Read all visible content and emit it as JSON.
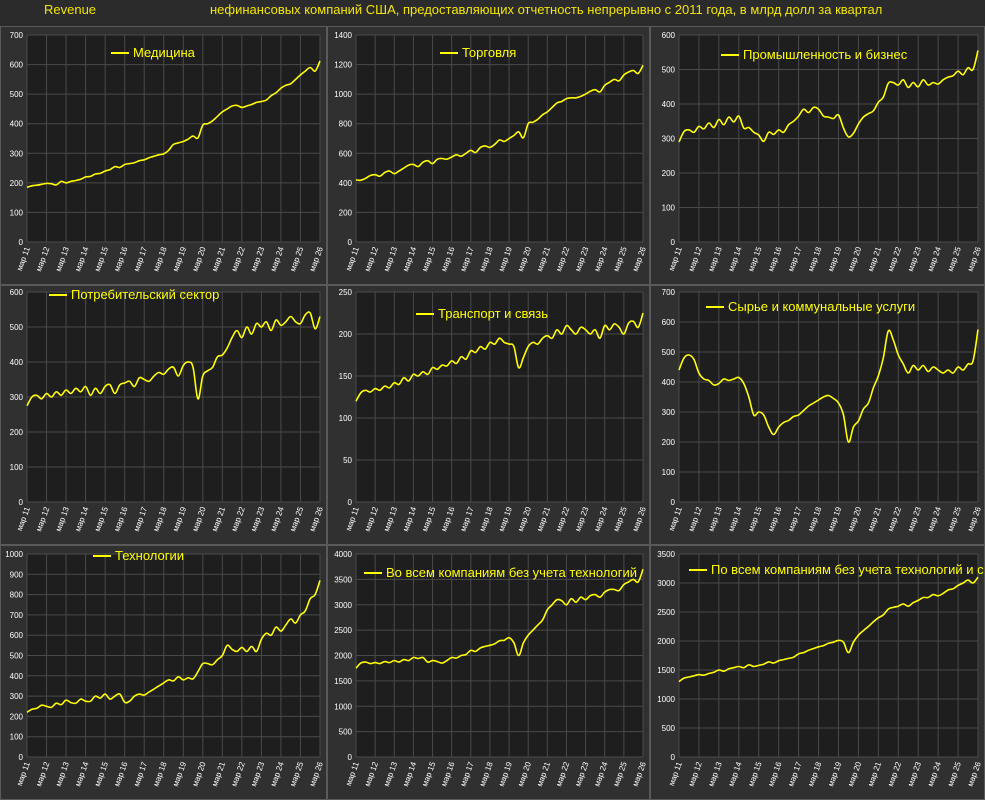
{
  "header": {
    "left_label": "Revenue",
    "subtitle": "нефинансовых компаний США, предоставляющих отчетность непрерывно с 2011 года, в млрд долл за квартал"
  },
  "colors": {
    "line": "#ffff00",
    "background": "#2b2b2b",
    "plot_bg": "#1e1e1e",
    "grid": "#4a4a4a",
    "text": "#ffffff"
  },
  "x_tick_labels": [
    "мар 11",
    "мар 12",
    "мар 13",
    "мар 14",
    "мар 15",
    "мар 16",
    "мар 17",
    "мар 18",
    "мар 19",
    "мар 20",
    "мар 21",
    "мар 22",
    "мар 23",
    "мар 24",
    "мар 25",
    "мар 26"
  ],
  "chart_data": [
    {
      "type": "line",
      "title": "Медицина",
      "legend_position": "top-left",
      "ylim": [
        0,
        700
      ],
      "yticks": [
        0,
        100,
        200,
        300,
        400,
        500,
        600,
        700
      ],
      "grid": true,
      "x_start": "2011-03",
      "x_step": "quarter",
      "values": [
        185,
        190,
        192,
        195,
        198,
        197,
        193,
        205,
        200,
        205,
        208,
        212,
        220,
        222,
        230,
        232,
        240,
        245,
        255,
        252,
        262,
        265,
        268,
        275,
        278,
        285,
        290,
        295,
        298,
        310,
        330,
        335,
        340,
        348,
        358,
        352,
        395,
        400,
        410,
        425,
        440,
        450,
        460,
        462,
        455,
        460,
        465,
        472,
        475,
        480,
        495,
        505,
        520,
        530,
        535,
        550,
        565,
        578,
        590,
        578,
        612
      ]
    },
    {
      "type": "line",
      "title": "Торговля",
      "legend_position": "top-center",
      "ylim": [
        0,
        1400
      ],
      "yticks": [
        0,
        200,
        400,
        600,
        800,
        1000,
        1200,
        1400
      ],
      "grid": true,
      "x_start": "2011-03",
      "x_step": "quarter",
      "values": [
        420,
        418,
        430,
        450,
        455,
        445,
        470,
        480,
        462,
        480,
        500,
        520,
        525,
        510,
        540,
        550,
        530,
        560,
        565,
        560,
        575,
        590,
        580,
        600,
        620,
        605,
        640,
        650,
        640,
        660,
        690,
        680,
        700,
        720,
        745,
        705,
        800,
        810,
        830,
        860,
        880,
        910,
        940,
        950,
        970,
        975,
        975,
        985,
        1000,
        1020,
        1030,
        1015,
        1060,
        1080,
        1100,
        1090,
        1130,
        1150,
        1160,
        1140,
        1195
      ]
    },
    {
      "type": "line",
      "title": "Промышленность и бизнес",
      "legend_position": "top-center",
      "ylim": [
        0,
        600
      ],
      "yticks": [
        0,
        100,
        200,
        300,
        400,
        500,
        600
      ],
      "grid": true,
      "x_start": "2011-03",
      "x_step": "quarter",
      "values": [
        290,
        320,
        325,
        318,
        335,
        328,
        345,
        332,
        355,
        340,
        362,
        348,
        365,
        330,
        332,
        318,
        310,
        292,
        318,
        312,
        325,
        318,
        340,
        350,
        365,
        385,
        375,
        390,
        385,
        365,
        362,
        358,
        368,
        330,
        305,
        315,
        342,
        362,
        372,
        380,
        405,
        420,
        460,
        462,
        455,
        470,
        448,
        462,
        450,
        470,
        455,
        462,
        458,
        470,
        478,
        482,
        495,
        485,
        505,
        500,
        555
      ]
    },
    {
      "type": "line",
      "title": "Потребительский сектор",
      "legend_position": "top-left",
      "ylim": [
        0,
        600
      ],
      "yticks": [
        0,
        100,
        200,
        300,
        400,
        500,
        600
      ],
      "grid": true,
      "x_start": "2011-03",
      "x_step": "quarter",
      "values": [
        275,
        300,
        305,
        295,
        310,
        300,
        315,
        305,
        320,
        310,
        325,
        315,
        330,
        305,
        325,
        310,
        330,
        335,
        310,
        335,
        340,
        345,
        330,
        355,
        350,
        345,
        360,
        370,
        365,
        380,
        385,
        360,
        390,
        400,
        385,
        295,
        360,
        375,
        385,
        415,
        420,
        440,
        470,
        490,
        470,
        500,
        480,
        510,
        500,
        515,
        490,
        520,
        505,
        515,
        530,
        515,
        510,
        535,
        540,
        495,
        530
      ]
    },
    {
      "type": "line",
      "title": "Транспорт и связь",
      "legend_position": "top-center",
      "ylim": [
        0,
        250
      ],
      "yticks": [
        0,
        50,
        100,
        150,
        200,
        250
      ],
      "grid": true,
      "x_start": "2011-03",
      "x_step": "quarter",
      "values": [
        120,
        130,
        133,
        131,
        135,
        133,
        138,
        136,
        142,
        140,
        148,
        144,
        152,
        150,
        155,
        152,
        160,
        158,
        163,
        162,
        168,
        165,
        173,
        170,
        180,
        178,
        185,
        182,
        190,
        188,
        195,
        190,
        188,
        185,
        160,
        172,
        185,
        190,
        188,
        195,
        198,
        195,
        205,
        200,
        210,
        205,
        200,
        208,
        205,
        200,
        205,
        195,
        210,
        205,
        212,
        208,
        200,
        213,
        215,
        208,
        225
      ]
    },
    {
      "type": "line",
      "title": "Сырье и коммунальные услуги",
      "legend_position": "top-center",
      "ylim": [
        0,
        700
      ],
      "yticks": [
        0,
        100,
        200,
        300,
        400,
        500,
        600,
        700
      ],
      "grid": true,
      "x_start": "2011-03",
      "x_step": "quarter",
      "values": [
        440,
        480,
        490,
        475,
        430,
        410,
        405,
        390,
        395,
        410,
        405,
        410,
        415,
        395,
        350,
        290,
        300,
        290,
        250,
        225,
        250,
        265,
        272,
        285,
        290,
        305,
        320,
        330,
        340,
        350,
        355,
        345,
        330,
        290,
        200,
        250,
        270,
        310,
        330,
        380,
        420,
        480,
        570,
        540,
        490,
        460,
        430,
        455,
        440,
        455,
        435,
        450,
        440,
        430,
        440,
        430,
        450,
        440,
        460,
        470,
        575
      ]
    },
    {
      "type": "line",
      "title": "Технологии",
      "legend_position": "top-left",
      "ylim": [
        0,
        1000
      ],
      "yticks": [
        0,
        100,
        200,
        300,
        400,
        500,
        600,
        700,
        800,
        900,
        1000
      ],
      "grid": true,
      "x_start": "2011-03",
      "x_step": "quarter",
      "values": [
        220,
        235,
        240,
        255,
        250,
        245,
        265,
        258,
        280,
        268,
        265,
        285,
        275,
        275,
        300,
        290,
        310,
        285,
        300,
        310,
        270,
        275,
        300,
        310,
        305,
        320,
        335,
        350,
        365,
        380,
        375,
        395,
        380,
        390,
        385,
        420,
        460,
        460,
        455,
        480,
        500,
        550,
        530,
        520,
        540,
        520,
        545,
        520,
        580,
        610,
        600,
        640,
        620,
        650,
        680,
        660,
        700,
        720,
        780,
        800,
        870
      ]
    },
    {
      "type": "line",
      "title": "Во всем компаниям без учета технологий",
      "legend_position": "top-center",
      "ylim": [
        0,
        4000
      ],
      "yticks": [
        0,
        500,
        1000,
        1500,
        2000,
        2500,
        3000,
        3500,
        4000
      ],
      "grid": true,
      "x_start": "2011-03",
      "x_step": "quarter",
      "values": [
        1750,
        1850,
        1870,
        1840,
        1860,
        1840,
        1880,
        1860,
        1900,
        1870,
        1920,
        1900,
        1960,
        1940,
        1960,
        1870,
        1900,
        1880,
        1850,
        1900,
        1960,
        1950,
        2000,
        2020,
        2100,
        2080,
        2150,
        2180,
        2200,
        2230,
        2290,
        2300,
        2350,
        2250,
        2000,
        2250,
        2400,
        2500,
        2600,
        2700,
        2900,
        3000,
        3100,
        3080,
        3000,
        3120,
        3050,
        3150,
        3100,
        3180,
        3200,
        3150,
        3250,
        3300,
        3300,
        3280,
        3400,
        3450,
        3500,
        3450,
        3700
      ]
    },
    {
      "type": "line",
      "title": "По всем компаниям без учета технологий и сырья",
      "legend_position": "top-center",
      "ylim": [
        0,
        3500
      ],
      "yticks": [
        0,
        500,
        1000,
        1500,
        2000,
        2500,
        3000,
        3500
      ],
      "grid": true,
      "x_start": "2011-03",
      "x_step": "quarter",
      "values": [
        1300,
        1360,
        1380,
        1400,
        1420,
        1410,
        1440,
        1460,
        1500,
        1480,
        1520,
        1540,
        1560,
        1540,
        1590,
        1560,
        1580,
        1600,
        1640,
        1620,
        1660,
        1680,
        1700,
        1720,
        1780,
        1800,
        1840,
        1870,
        1900,
        1920,
        1960,
        1980,
        2010,
        1980,
        1800,
        1980,
        2100,
        2180,
        2250,
        2330,
        2400,
        2450,
        2550,
        2580,
        2600,
        2640,
        2600,
        2660,
        2700,
        2750,
        2750,
        2800,
        2780,
        2820,
        2880,
        2900,
        2960,
        3000,
        3050,
        3000,
        3100
      ]
    }
  ]
}
